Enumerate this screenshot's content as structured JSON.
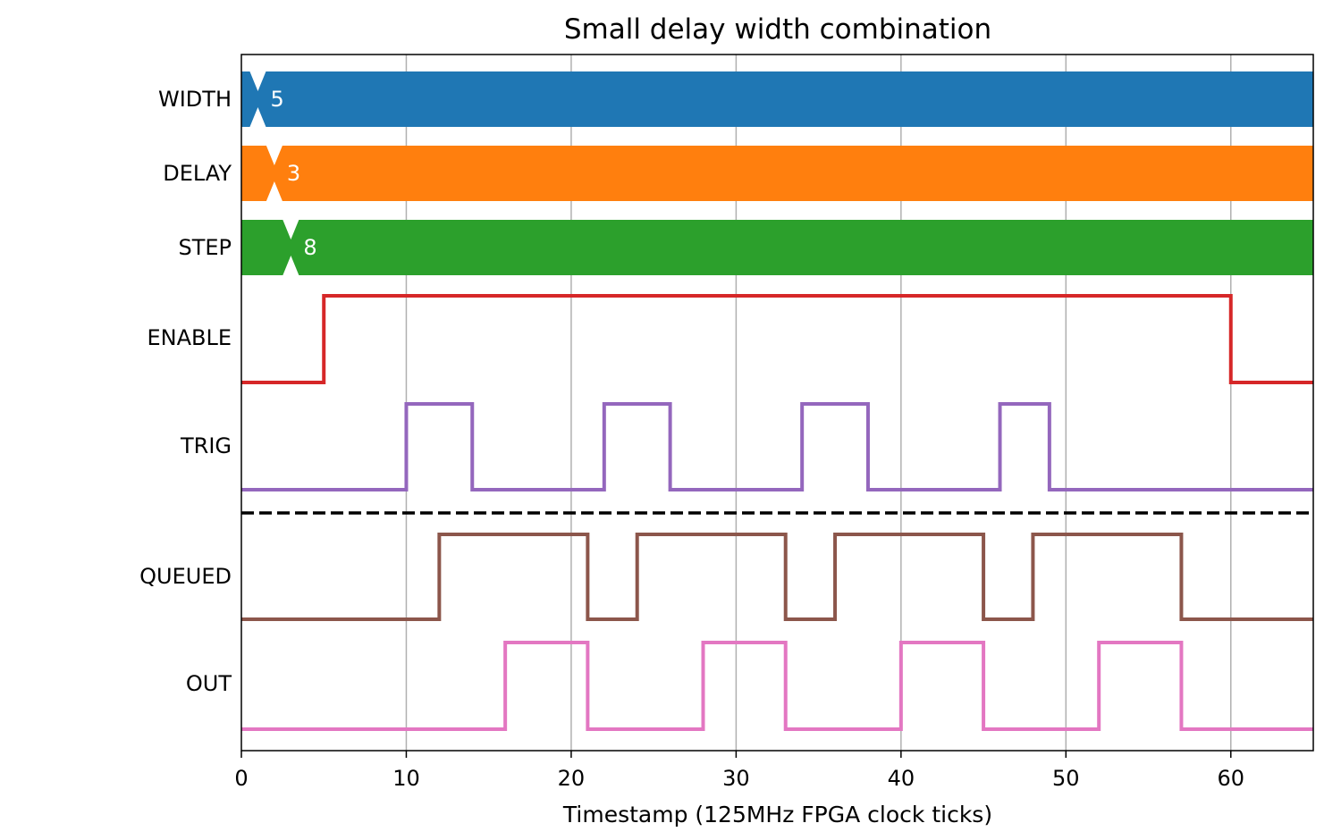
{
  "chart_data": {
    "type": "timing",
    "title": "Small delay width combination",
    "xlabel": "Timestamp (125MHz FPGA clock ticks)",
    "xlim": [
      0,
      65
    ],
    "xticks": [
      0,
      10,
      20,
      30,
      40,
      50,
      60
    ],
    "grid": "x-major",
    "buses": [
      {
        "name": "WIDTH",
        "color": "#1f77b4",
        "transition_at": 1,
        "value": "5"
      },
      {
        "name": "DELAY",
        "color": "#ff7f0e",
        "transition_at": 2,
        "value": "3"
      },
      {
        "name": "STEP",
        "color": "#2ca02c",
        "transition_at": 3,
        "value": "8"
      }
    ],
    "signals": [
      {
        "name": "ENABLE",
        "color": "#d62728",
        "initial": 0,
        "edges": [
          5,
          60
        ]
      },
      {
        "name": "TRIG",
        "color": "#9467bd",
        "initial": 0,
        "edges": [
          10,
          14,
          22,
          26,
          34,
          38,
          46,
          49
        ]
      },
      {
        "name": "QUEUED",
        "color": "#8c564b",
        "initial": 0,
        "edges": [
          12,
          21,
          24,
          33,
          36,
          45,
          48,
          57
        ]
      },
      {
        "name": "OUT",
        "color": "#e377c2",
        "initial": 0,
        "edges": [
          16,
          21,
          28,
          33,
          40,
          45,
          52,
          57
        ]
      }
    ],
    "separator": {
      "style": "dashed",
      "color": "#000000",
      "between": [
        "TRIG",
        "QUEUED"
      ]
    }
  }
}
